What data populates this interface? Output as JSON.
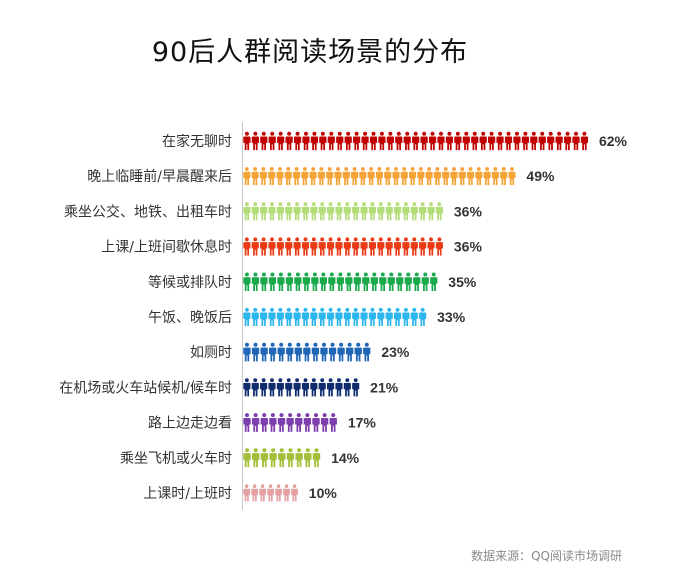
{
  "chart_data": {
    "type": "bar",
    "title": "90后人群阅读场景的分布",
    "categories": [
      "在家无聊时",
      "晚上临睡前/早晨醒来后",
      "乘坐公交、地铁、出租车时",
      "上课/上班间歇休息时",
      "等候或排队时",
      "午饭、晚饭后",
      "如厕时",
      "在机场或火车站候机/候车时",
      "路上边走边看",
      "乘坐飞机或火车时",
      "上课时/上班时"
    ],
    "values": [
      62,
      49,
      36,
      36,
      35,
      33,
      23,
      21,
      17,
      14,
      10
    ],
    "value_labels": [
      "62%",
      "49%",
      "36%",
      "36%",
      "35%",
      "33%",
      "23%",
      "21%",
      "17%",
      "14%",
      "10%"
    ],
    "colors": [
      "#c00000",
      "#f5a335",
      "#b4dc78",
      "#ea3a16",
      "#19a84a",
      "#2bb6ee",
      "#1f66b6",
      "#0f2c6e",
      "#7e3fae",
      "#a3be3a",
      "#e3a2a2"
    ],
    "unit": "%",
    "orientation": "horizontal",
    "bar_style": "person-icons",
    "grid": false,
    "legend": "none"
  },
  "source": "数据来源：QQ阅读市场调研"
}
